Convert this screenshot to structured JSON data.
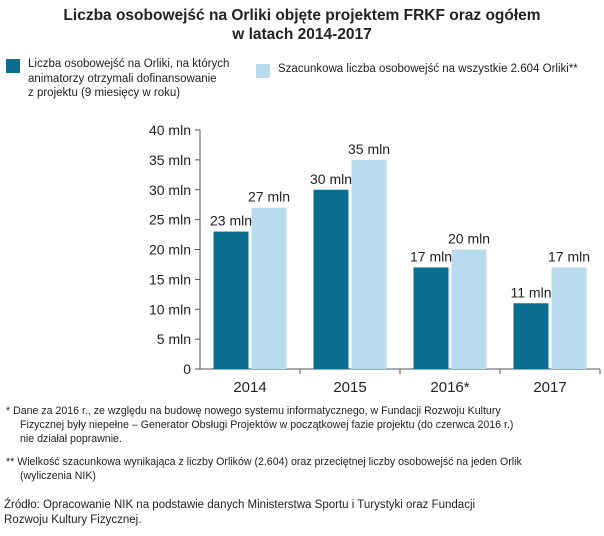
{
  "title_lines": [
    "Liczba osobowejść na Orliki objęte projektem FRKF oraz ogółem",
    "w latach 2014-2017"
  ],
  "legend": {
    "series1_lines": [
      "Liczba osobowejść na Orliki, na których",
      "animatorzy otrzymali dofinansowanie",
      "z projektu (9 miesięcy w roku)"
    ],
    "series2_lines": [
      "Szacunkowa liczba osobowejść na wszystkie 2.604 Orliki**"
    ]
  },
  "colors": {
    "series1": "#0b6e8e",
    "series2": "#b8dced",
    "axis": "#555555"
  },
  "chart_data": {
    "type": "bar",
    "categories": [
      "2014",
      "2015",
      "2016*",
      "2017"
    ],
    "series": [
      {
        "values": [
          23,
          30,
          17,
          11
        ],
        "labels": [
          "23 mln",
          "30 mln",
          "17 mln",
          "11 mln"
        ]
      },
      {
        "values": [
          27,
          35,
          20,
          17
        ],
        "labels": [
          "27 mln",
          "35 mln",
          "20 mln",
          "17 mln"
        ]
      }
    ],
    "ylim": [
      0,
      40
    ],
    "yticks": [
      0,
      5,
      10,
      15,
      20,
      25,
      30,
      35,
      40
    ],
    "ytick_labels": [
      "0",
      "5 mln",
      "10 mln",
      "15 mln",
      "20 mln",
      "25 mln",
      "30 mln",
      "35 mln",
      "40 mln"
    ],
    "grid": false
  },
  "notes": {
    "note1_lines": [
      "*  Dane za 2016 r., ze względu na budowę nowego systemu informatycznego, w Fundacji Rozwoju Kultury",
      "Fizycznej były niepełne – Generator Obsługi Projektów w początkowej fazie projektu (do czerwca 2016 r.)",
      "nie działał poprawnie."
    ],
    "note2_lines": [
      "**  Wielkość szacunkowa wynikająca z liczby Orlików (2.604) oraz przeciętnej liczby osobowejść na jeden Orlik",
      "(wyliczenia NIK)"
    ]
  },
  "source_lines": [
    "Źródło:  Opracowanie  NIK na podstawie  danych  Ministerstwa  Sportu  i  Turystyki  oraz  Fundacji",
    "Rozwoju  Kultury  Fizycznej."
  ]
}
